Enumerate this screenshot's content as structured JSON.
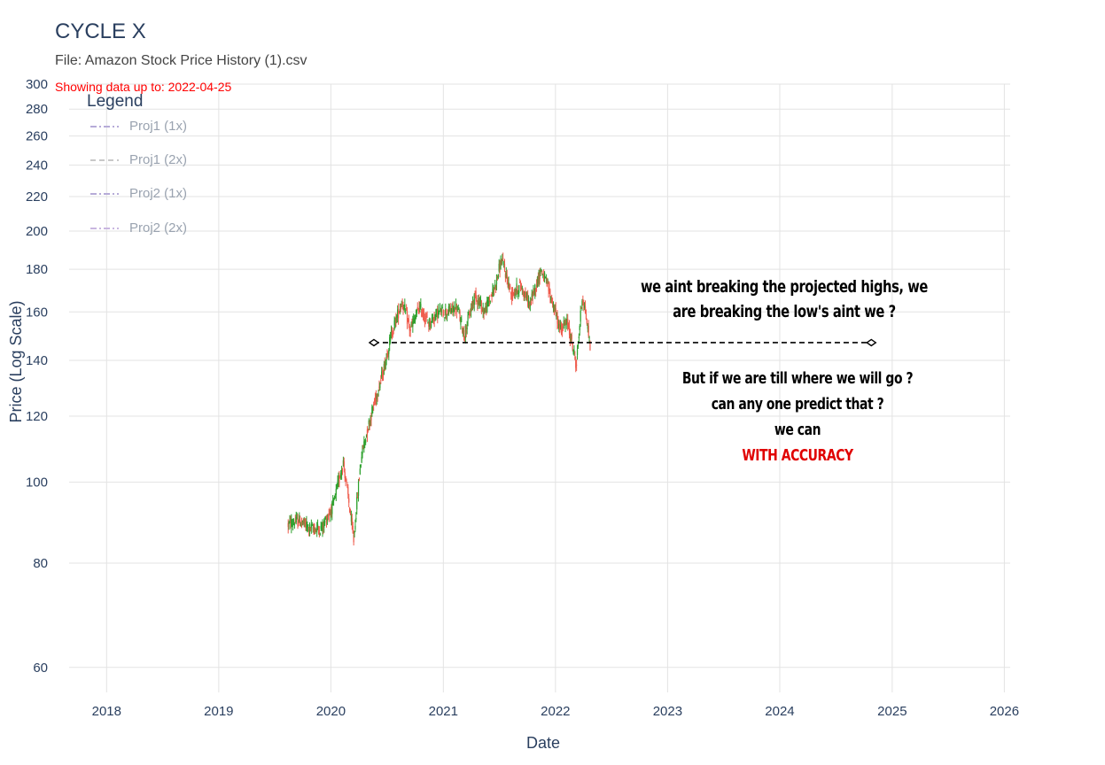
{
  "header": {
    "title": "CYCLE X",
    "file_line": "File: Amazon Stock Price History (1).csv",
    "showing_line": "Showing data up to: 2022-04-25"
  },
  "legend": {
    "title": "Legend",
    "items": [
      {
        "label": "Proj1 (1x)",
        "color": "#b6abd8",
        "dash": "dashdot"
      },
      {
        "label": "Proj1 (2x)",
        "color": "#c8c8c8",
        "dash": "dash"
      },
      {
        "label": "Proj2 (1x)",
        "color": "#b6abd8",
        "dash": "dashdot"
      },
      {
        "label": "Proj2 (2x)",
        "color": "#c9b6e0",
        "dash": "dashdot"
      }
    ]
  },
  "annotations": {
    "line1": "we aint breaking the projected highs, we",
    "line2": "are breaking the low's aint we ?",
    "line3": "But if we are till where we will go ?",
    "line4": "can any one predict that ?",
    "line5": "we can",
    "line6": "WITH ACCURACY"
  },
  "chart_data": {
    "type": "candlestick",
    "xlabel": "Date",
    "ylabel": "Price (Log Scale)",
    "y_scale": "log",
    "x_range": [
      "2017-09-01",
      "2026-01-20"
    ],
    "y_range": [
      56,
      300
    ],
    "x_ticks": [
      "2018",
      "2019",
      "2020",
      "2021",
      "2022",
      "2023",
      "2024",
      "2025",
      "2026"
    ],
    "y_ticks": [
      60,
      80,
      100,
      120,
      140,
      160,
      180,
      200,
      220,
      240,
      260,
      280,
      300
    ],
    "grid": true,
    "colors": {
      "up": "#2ca02c",
      "down": "#ef5b4c"
    },
    "price_path": [
      [
        "2019-08-15",
        89
      ],
      [
        "2019-09-20",
        90
      ],
      [
        "2019-10-25",
        88
      ],
      [
        "2019-12-01",
        88
      ],
      [
        "2020-01-10",
        94
      ],
      [
        "2020-02-10",
        106
      ],
      [
        "2020-03-15",
        85
      ],
      [
        "2020-04-10",
        108
      ],
      [
        "2020-05-15",
        122
      ],
      [
        "2020-06-20",
        136
      ],
      [
        "2020-07-15",
        150
      ],
      [
        "2020-08-20",
        165
      ],
      [
        "2020-09-15",
        152
      ],
      [
        "2020-10-15",
        162
      ],
      [
        "2020-11-15",
        155
      ],
      [
        "2020-12-15",
        160
      ],
      [
        "2021-01-15",
        160
      ],
      [
        "2021-02-15",
        162
      ],
      [
        "2021-03-10",
        150
      ],
      [
        "2021-04-15",
        168
      ],
      [
        "2021-05-15",
        160
      ],
      [
        "2021-06-15",
        170
      ],
      [
        "2021-07-10",
        185
      ],
      [
        "2021-08-10",
        168
      ],
      [
        "2021-09-10",
        172
      ],
      [
        "2021-10-10",
        163
      ],
      [
        "2021-11-15",
        180
      ],
      [
        "2021-12-10",
        170
      ],
      [
        "2022-01-15",
        153
      ],
      [
        "2022-02-10",
        155
      ],
      [
        "2022-03-10",
        138
      ],
      [
        "2022-03-30",
        168
      ],
      [
        "2022-04-25",
        145
      ]
    ],
    "horizontal_marker": {
      "from": "2020-05-20",
      "to": "2024-10-25",
      "value": 147,
      "color": "#000000",
      "dash": "dash"
    }
  }
}
